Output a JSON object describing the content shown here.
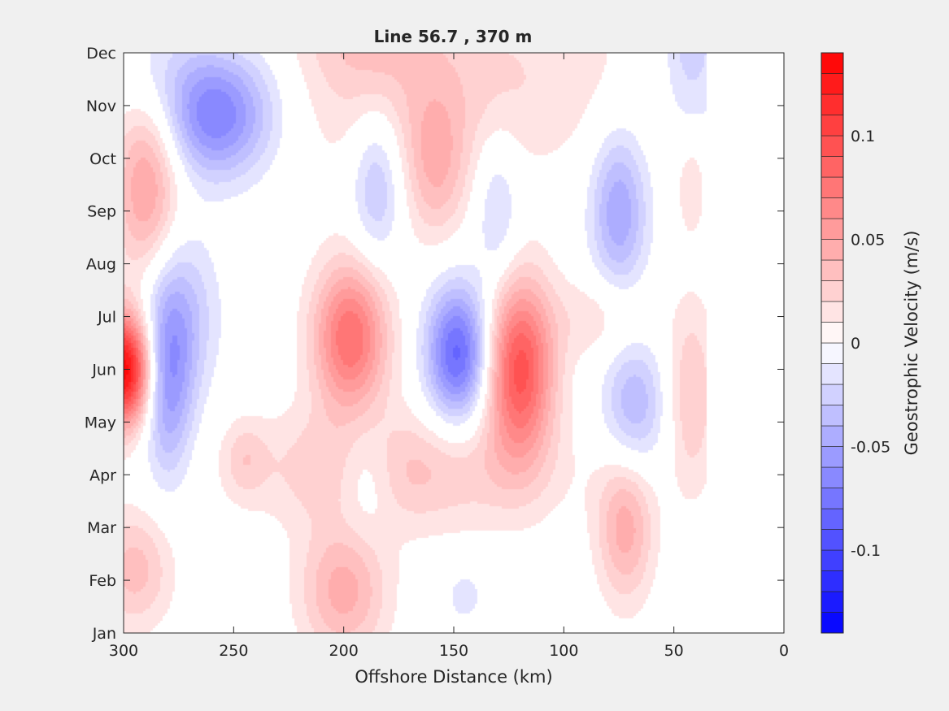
{
  "chart_data": {
    "type": "heatmap",
    "subtype": "filled-contour",
    "title": "Line 56.7 , 370 m",
    "xlabel": "Offshore Distance (km)",
    "xlim": [
      300,
      0
    ],
    "x_reversed": true,
    "x_ticks": [
      300,
      250,
      200,
      150,
      100,
      50,
      0
    ],
    "ylim": [
      0,
      11
    ],
    "y_ticks": [
      "Jan",
      "Feb",
      "Mar",
      "Apr",
      "May",
      "Jun",
      "Jul",
      "Aug",
      "Sep",
      "Oct",
      "Nov",
      "Dec"
    ],
    "data_coverage_x": [
      300,
      35
    ],
    "colorbar": {
      "label": "Geostrophic Velocity (m/s)",
      "clim": [
        -0.14,
        0.14
      ],
      "levels": 28,
      "ticks": [
        0.1,
        0.05,
        0,
        -0.05,
        -0.1
      ],
      "tick_labels": [
        "0.1",
        "0.05",
        "0",
        "-0.05",
        "-0.1"
      ],
      "colormap": "blue-white-red",
      "positive_color": "#ff0000",
      "negative_color": "#0000ff",
      "zero_color": "#ffffff"
    },
    "features": [
      {
        "x": 300,
        "month": 5.0,
        "value": 0.14,
        "sx": 9,
        "sy": 0.75
      },
      {
        "x": 290,
        "month": 8.0,
        "value": 0.04,
        "sx": 10,
        "sy": 1.0
      },
      {
        "x": 288,
        "month": 9.4,
        "value": 0.03,
        "sx": 12,
        "sy": 0.9
      },
      {
        "x": 295,
        "month": 1.2,
        "value": 0.035,
        "sx": 12,
        "sy": 0.8
      },
      {
        "x": 280,
        "month": 4.6,
        "value": -0.05,
        "sx": 8,
        "sy": 1.2
      },
      {
        "x": 275,
        "month": 6.0,
        "value": -0.035,
        "sx": 12,
        "sy": 1.1
      },
      {
        "x": 258,
        "month": 9.7,
        "value": -0.06,
        "sx": 18,
        "sy": 0.8
      },
      {
        "x": 265,
        "month": 10.5,
        "value": -0.025,
        "sx": 30,
        "sy": 0.9
      },
      {
        "x": 250,
        "month": 11.9,
        "value": 0.02,
        "sx": 10,
        "sy": 0.5
      },
      {
        "x": 245,
        "month": 3.3,
        "value": 0.02,
        "sx": 7,
        "sy": 0.5
      },
      {
        "x": 197,
        "month": 5.6,
        "value": 0.08,
        "sx": 12,
        "sy": 1.0
      },
      {
        "x": 200,
        "month": 0.8,
        "value": 0.045,
        "sx": 14,
        "sy": 0.9
      },
      {
        "x": 195,
        "month": 3.2,
        "value": 0.02,
        "sx": 35,
        "sy": 0.8
      },
      {
        "x": 185,
        "month": 8.5,
        "value": -0.035,
        "sx": 8,
        "sy": 1.0
      },
      {
        "x": 190,
        "month": 3.0,
        "value": -0.03,
        "sx": 10,
        "sy": 0.8
      },
      {
        "x": 148,
        "month": 5.3,
        "value": -0.085,
        "sx": 10,
        "sy": 0.9
      },
      {
        "x": 158,
        "month": 8.8,
        "value": 0.035,
        "sx": 10,
        "sy": 1.0
      },
      {
        "x": 120,
        "month": 5.0,
        "value": 0.095,
        "sx": 11,
        "sy": 1.2
      },
      {
        "x": 130,
        "month": 8.0,
        "value": -0.025,
        "sx": 7,
        "sy": 1.0
      },
      {
        "x": 145,
        "month": 0.7,
        "value": -0.02,
        "sx": 5,
        "sy": 0.3
      },
      {
        "x": 160,
        "month": 3.0,
        "value": 0.02,
        "sx": 45,
        "sy": 0.8
      },
      {
        "x": 160,
        "month": 10.5,
        "value": 0.025,
        "sx": 65,
        "sy": 1.3
      },
      {
        "x": 190,
        "month": 11.5,
        "value": 0.02,
        "sx": 20,
        "sy": 0.8
      },
      {
        "x": 75,
        "month": 8.0,
        "value": -0.05,
        "sx": 9,
        "sy": 1.1
      },
      {
        "x": 68,
        "month": 4.3,
        "value": -0.04,
        "sx": 10,
        "sy": 0.9
      },
      {
        "x": 72,
        "month": 2.0,
        "value": 0.045,
        "sx": 9,
        "sy": 1.0
      },
      {
        "x": 82,
        "month": 6.0,
        "value": 0.02,
        "sx": 15,
        "sy": 0.6
      },
      {
        "x": 42,
        "month": 4.5,
        "value": 0.03,
        "sx": 8,
        "sy": 1.3
      },
      {
        "x": 42,
        "month": 8.5,
        "value": 0.02,
        "sx": 5,
        "sy": 0.7
      },
      {
        "x": 42,
        "month": 11.3,
        "value": -0.03,
        "sx": 10,
        "sy": 1.4
      }
    ]
  }
}
